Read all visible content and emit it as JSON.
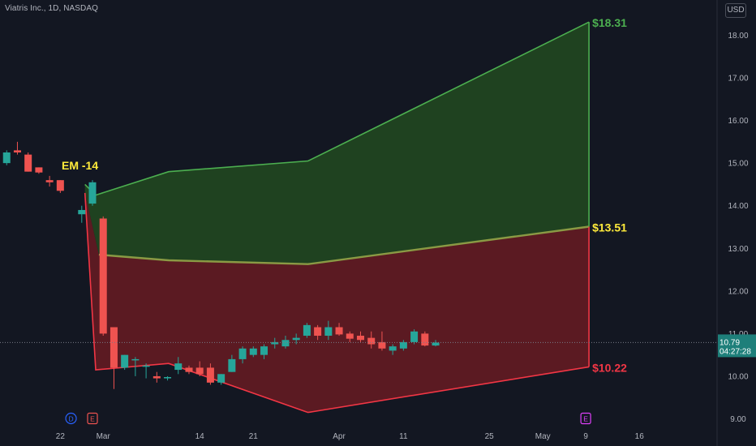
{
  "header": {
    "title": "Viatris Inc., 1D, NASDAQ",
    "currency": "USD"
  },
  "colors": {
    "background": "#131722",
    "up": "#26a69a",
    "down": "#ef5350",
    "green_fill": "#1f4220",
    "green_line": "#4caf50",
    "red_fill": "#5b1a22",
    "red_line": "#f23645",
    "em_label": "#ffeb3b"
  },
  "chart_data": {
    "type": "candlestick",
    "symbol": "Viatris Inc., 1D, NASDAQ",
    "currency": "USD",
    "ylim": [
      8.9,
      18.65
    ],
    "y_ticks": [
      "9.00",
      "10.00",
      "11.00",
      "12.00",
      "13.00",
      "14.00",
      "15.00",
      "16.00",
      "17.00",
      "18.00"
    ],
    "x_ticks": [
      "22",
      "Mar",
      "14",
      "21",
      "Apr",
      "11",
      "25",
      "May",
      "9",
      "16"
    ],
    "x_tick_day_index": [
      -3,
      1,
      10,
      15,
      23,
      29,
      37,
      42,
      46,
      51
    ],
    "last_price": "10.79",
    "countdown": "04:27:28",
    "event_markers": [
      {
        "label": "D",
        "day_index": -2,
        "color": "#2962ff"
      },
      {
        "label": "E",
        "day_index": 0,
        "color": "#ef5350"
      },
      {
        "label": "E",
        "day_index": 46,
        "color": "#e040fb"
      }
    ],
    "em_label": "EM -14",
    "price_labels": [
      {
        "text": "$18.31",
        "value": 18.31,
        "color": "#4caf50"
      },
      {
        "text": "$13.51",
        "value": 13.51,
        "color": "#ffeb3b"
      },
      {
        "text": "$10.22",
        "value": 10.22,
        "color": "#f23645"
      }
    ],
    "upper_band": [
      {
        "day_index": -0.7,
        "value": 14.5
      },
      {
        "day_index": 0.3,
        "value": 14.25
      },
      {
        "day_index": 7.1,
        "value": 14.8
      },
      {
        "day_index": 20.1,
        "value": 15.05
      },
      {
        "day_index": 46.3,
        "value": 18.31
      }
    ],
    "mid_line": [
      {
        "day_index": 0.6,
        "value": 12.85
      },
      {
        "day_index": 7.1,
        "value": 12.72
      },
      {
        "day_index": 20.1,
        "value": 12.63
      },
      {
        "day_index": 46.3,
        "value": 13.51
      }
    ],
    "lower_band": [
      {
        "day_index": -0.7,
        "value": 14.3
      },
      {
        "day_index": 0.3,
        "value": 10.15
      },
      {
        "day_index": 7.1,
        "value": 10.3
      },
      {
        "day_index": 20.1,
        "value": 9.15
      },
      {
        "day_index": 46.3,
        "value": 10.22
      }
    ],
    "candles": [
      {
        "d": -8,
        "o": 15.0,
        "h": 15.3,
        "l": 14.95,
        "c": 15.25
      },
      {
        "d": -7,
        "o": 15.3,
        "h": 15.5,
        "l": 15.2,
        "c": 15.25
      },
      {
        "d": -6,
        "o": 15.2,
        "h": 15.25,
        "l": 14.8,
        "c": 14.8
      },
      {
        "d": -5,
        "o": 14.9,
        "h": 14.9,
        "l": 14.75,
        "c": 14.78
      },
      {
        "d": -4,
        "o": 14.6,
        "h": 14.7,
        "l": 14.45,
        "c": 14.55
      },
      {
        "d": -3,
        "o": 14.6,
        "h": 14.6,
        "l": 14.3,
        "c": 14.35
      },
      {
        "d": -1,
        "o": 13.8,
        "h": 14.0,
        "l": 13.6,
        "c": 13.9
      },
      {
        "d": 0,
        "o": 14.05,
        "h": 14.6,
        "l": 14.0,
        "c": 14.55
      },
      {
        "d": 1,
        "o": 13.7,
        "h": 13.75,
        "l": 10.95,
        "c": 11.0
      },
      {
        "d": 2,
        "o": 11.15,
        "h": 11.15,
        "l": 9.7,
        "c": 10.2
      },
      {
        "d": 3,
        "o": 10.2,
        "h": 10.5,
        "l": 10.15,
        "c": 10.5
      },
      {
        "d": 4,
        "o": 10.4,
        "h": 10.45,
        "l": 10.0,
        "c": 10.4
      },
      {
        "d": 5,
        "o": 10.25,
        "h": 10.3,
        "l": 9.95,
        "c": 10.25
      },
      {
        "d": 6,
        "o": 10.0,
        "h": 10.1,
        "l": 9.85,
        "c": 9.95
      },
      {
        "d": 7,
        "o": 9.95,
        "h": 10.0,
        "l": 9.9,
        "c": 9.98
      },
      {
        "d": 8,
        "o": 10.15,
        "h": 10.45,
        "l": 10.05,
        "c": 10.3
      },
      {
        "d": 9,
        "o": 10.2,
        "h": 10.25,
        "l": 10.05,
        "c": 10.1
      },
      {
        "d": 10,
        "o": 10.2,
        "h": 10.35,
        "l": 10.0,
        "c": 10.05
      },
      {
        "d": 11,
        "o": 10.2,
        "h": 10.3,
        "l": 9.8,
        "c": 9.85
      },
      {
        "d": 12,
        "o": 9.85,
        "h": 10.05,
        "l": 9.8,
        "c": 10.05
      },
      {
        "d": 13,
        "o": 10.1,
        "h": 10.5,
        "l": 10.1,
        "c": 10.4
      },
      {
        "d": 14,
        "o": 10.4,
        "h": 10.7,
        "l": 10.3,
        "c": 10.65
      },
      {
        "d": 15,
        "o": 10.5,
        "h": 10.7,
        "l": 10.45,
        "c": 10.65
      },
      {
        "d": 16,
        "o": 10.5,
        "h": 10.75,
        "l": 10.4,
        "c": 10.7
      },
      {
        "d": 17,
        "o": 10.75,
        "h": 10.9,
        "l": 10.65,
        "c": 10.8
      },
      {
        "d": 18,
        "o": 10.7,
        "h": 10.95,
        "l": 10.65,
        "c": 10.85
      },
      {
        "d": 19,
        "o": 10.85,
        "h": 11.0,
        "l": 10.75,
        "c": 10.9
      },
      {
        "d": 20,
        "o": 10.95,
        "h": 11.25,
        "l": 10.9,
        "c": 11.2
      },
      {
        "d": 21,
        "o": 11.15,
        "h": 11.2,
        "l": 10.85,
        "c": 10.95
      },
      {
        "d": 22,
        "o": 10.95,
        "h": 11.3,
        "l": 10.85,
        "c": 11.15
      },
      {
        "d": 23,
        "o": 11.15,
        "h": 11.25,
        "l": 10.95,
        "c": 10.98
      },
      {
        "d": 24,
        "o": 11.0,
        "h": 11.05,
        "l": 10.8,
        "c": 10.88
      },
      {
        "d": 25,
        "o": 10.95,
        "h": 11.05,
        "l": 10.8,
        "c": 10.85
      },
      {
        "d": 26,
        "o": 10.9,
        "h": 11.05,
        "l": 10.65,
        "c": 10.75
      },
      {
        "d": 27,
        "o": 10.8,
        "h": 11.05,
        "l": 10.6,
        "c": 10.65
      },
      {
        "d": 28,
        "o": 10.6,
        "h": 10.75,
        "l": 10.5,
        "c": 10.7
      },
      {
        "d": 29,
        "o": 10.65,
        "h": 10.85,
        "l": 10.6,
        "c": 10.8
      },
      {
        "d": 30,
        "o": 10.8,
        "h": 11.1,
        "l": 10.75,
        "c": 11.05
      },
      {
        "d": 31,
        "o": 11.0,
        "h": 11.05,
        "l": 10.7,
        "c": 10.72
      },
      {
        "d": 32,
        "o": 10.72,
        "h": 10.85,
        "l": 10.7,
        "c": 10.79
      }
    ]
  }
}
